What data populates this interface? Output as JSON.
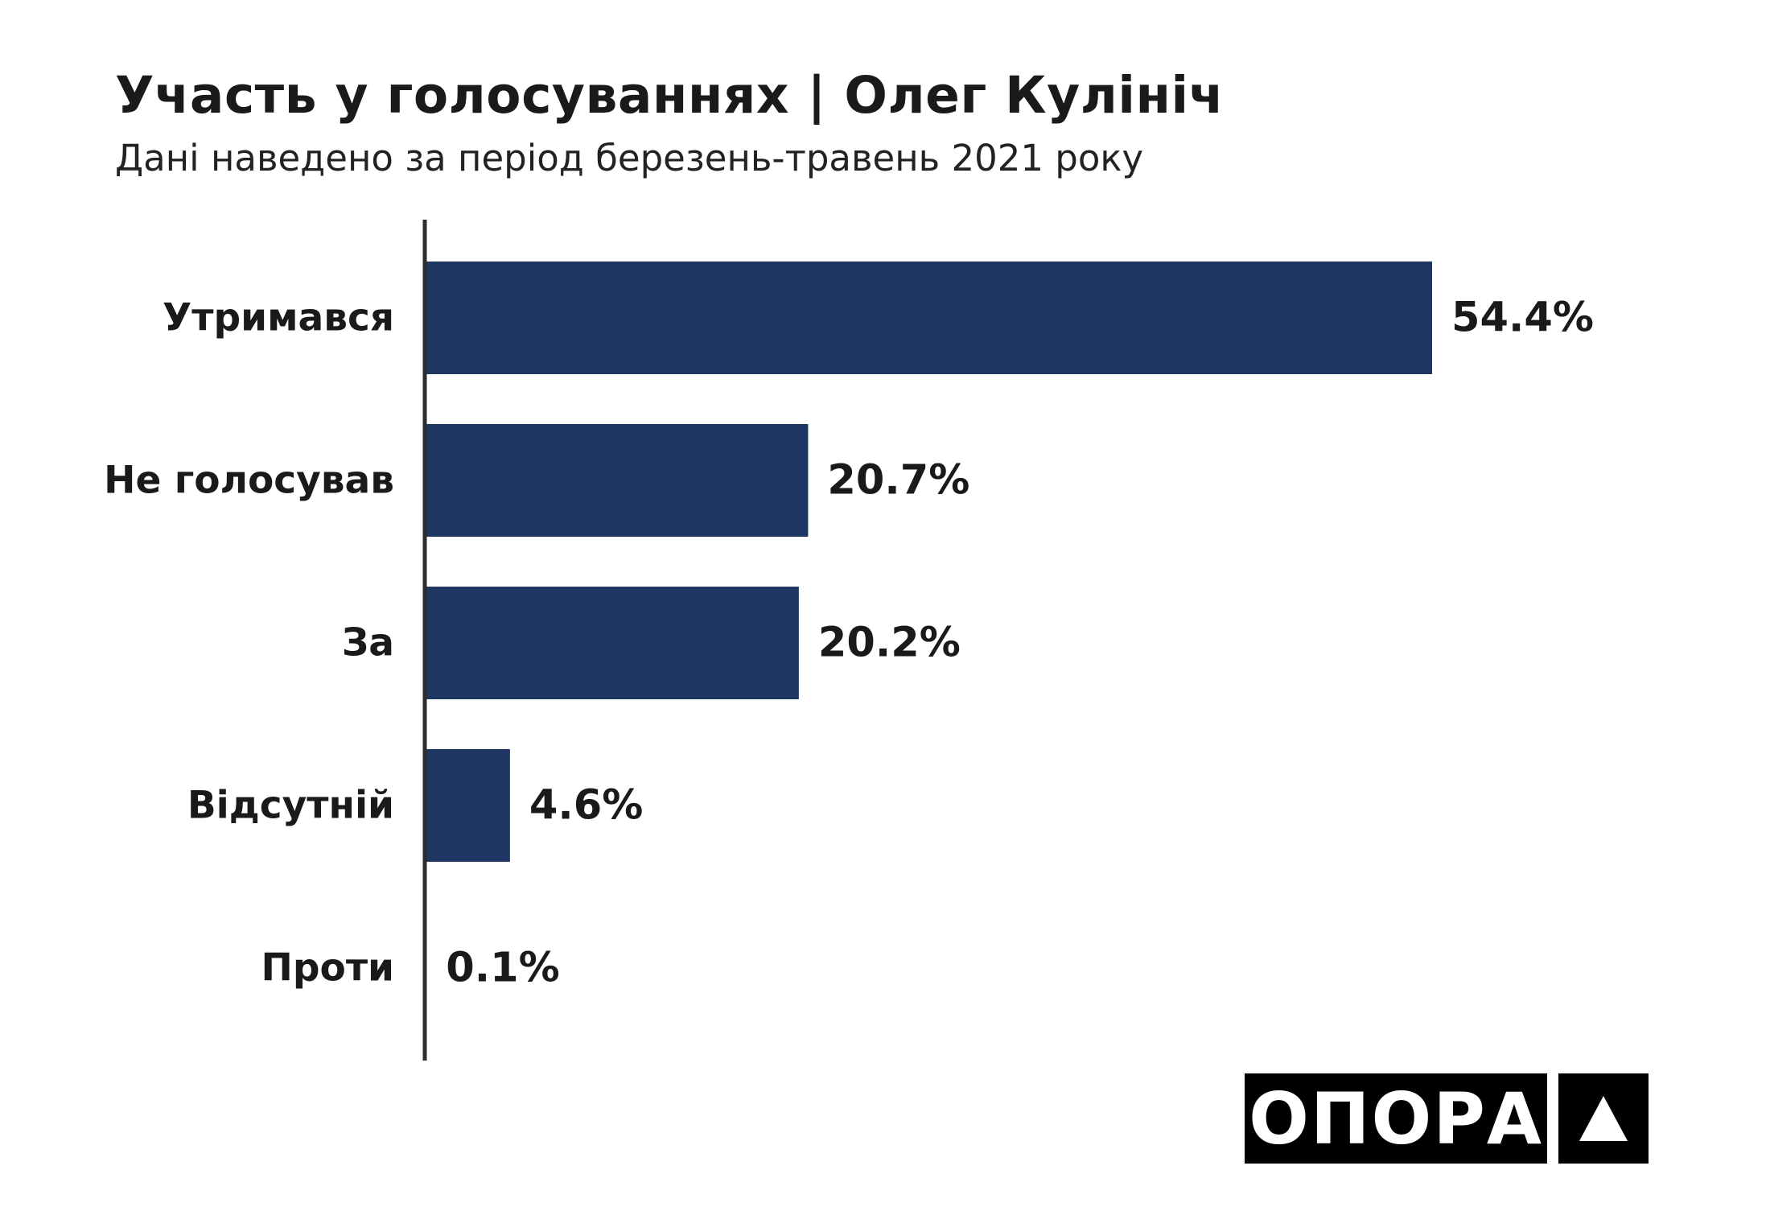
{
  "header": {
    "title": "Участь у голосуваннях | Олег Кулініч",
    "subtitle": "Дані наведено за період березень-травень 2021 року"
  },
  "chart_data": {
    "type": "bar",
    "orientation": "horizontal",
    "categories": [
      "Утримався",
      "Не голосував",
      "За",
      "Відсутній",
      "Проти"
    ],
    "values": [
      54.4,
      20.7,
      20.2,
      4.6,
      0.1
    ],
    "value_labels": [
      "54.4%",
      "20.7%",
      "20.2%",
      "4.6%",
      "0.1%"
    ],
    "unit": "%",
    "title": "Участь у голосуваннях | Олег Кулініч",
    "subtitle": "Дані наведено за період березень-травень 2021 року",
    "xlim": [
      0,
      54.4
    ],
    "grid": false,
    "legend": "none",
    "bar_color": "#1f3664"
  },
  "logo": {
    "text": "ОПОРА",
    "mark_icon": "triangle-icon"
  },
  "colors": {
    "bar": "#1f3664",
    "text": "#1a1a1a",
    "logo_bg": "#000000",
    "logo_fg": "#ffffff"
  }
}
